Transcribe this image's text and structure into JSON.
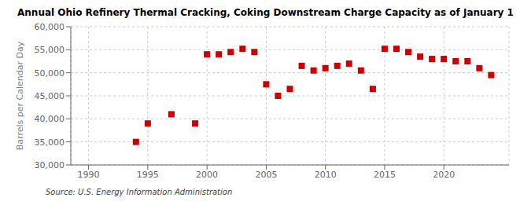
{
  "chart_data": {
    "type": "scatter",
    "title": "Annual Ohio Refinery Thermal Cracking, Coking Downstream Charge Capacity as of January 1",
    "ylabel": "Barrels per Calendar Day",
    "annotations": [
      "Source: U.S. Energy Information Administration"
    ],
    "x": [
      1994,
      1995,
      1997,
      1999,
      2000,
      2001,
      2002,
      2003,
      2004,
      2005,
      2006,
      2007,
      2008,
      2009,
      2010,
      2011,
      2012,
      2013,
      2014,
      2015,
      2016,
      2017,
      2018,
      2019,
      2020,
      2021,
      2022,
      2023,
      2024
    ],
    "values": [
      35000,
      39000,
      41000,
      39000,
      54000,
      54000,
      54500,
      55200,
      54500,
      47500,
      45000,
      46500,
      51500,
      50500,
      51000,
      51500,
      52000,
      50500,
      46500,
      55200,
      55200,
      54500,
      53500,
      53000,
      53000,
      52500,
      52500,
      51000,
      49500
    ],
    "color": "#cc0000",
    "marker": "square",
    "xlim": [
      1988.5,
      2025.5
    ],
    "xticks": [
      1990,
      1995,
      2000,
      2005,
      2010,
      2015,
      2020
    ],
    "ylim": [
      30000,
      60000
    ],
    "yticks": [
      {
        "value": 30000,
        "label": "30,000"
      },
      {
        "value": 35000,
        "label": "35,000"
      },
      {
        "value": 40000,
        "label": "40,000"
      },
      {
        "value": 45000,
        "label": "45,000"
      },
      {
        "value": 50000,
        "label": "50,000"
      },
      {
        "value": 55000,
        "label": "55,000"
      },
      {
        "value": 60000,
        "label": "60,000"
      }
    ],
    "grid": true
  }
}
